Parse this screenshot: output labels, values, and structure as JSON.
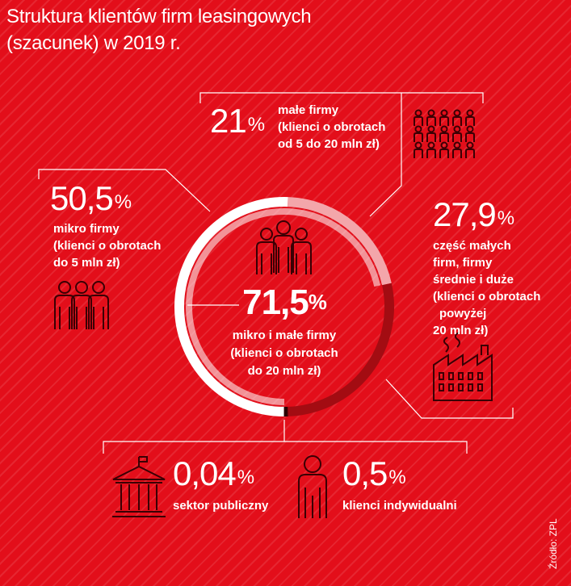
{
  "title_line1": "Struktura klientów firm leasingowych",
  "title_line2": "(szacunek) w 2019 r.",
  "percent_sign": "%",
  "items": {
    "male": {
      "value": "21",
      "l1": "małe firmy",
      "l2": "(klienci o obrotach",
      "l3": "od 5 do 20 mln zł)"
    },
    "mikro": {
      "value": "50,5",
      "l1": "mikro firmy",
      "l2": "(klienci o obrotach",
      "l3": "do 5 mln zł)"
    },
    "duze": {
      "value": "27,9",
      "l1": "część małych",
      "l2": "firm, firmy",
      "l3": "średnie i duże",
      "l4": "(klienci o obrotach",
      "l5": "powyżej",
      "l6": "20 mln zł)"
    },
    "center": {
      "value": "71,5",
      "l1": "mikro i małe firmy",
      "l2": "(klienci o obrotach",
      "l3": "do 20 mln zł)"
    },
    "publiczny": {
      "value": "0,04",
      "l1": "sektor publiczny"
    },
    "indywidualni": {
      "value": "0,5",
      "l1": "klienci indywidualni"
    }
  },
  "source": "Źródło: ZPL",
  "chart_data": {
    "type": "pie",
    "title": "Struktura klientów firm leasingowych (szacunek) w 2019 r.",
    "categories": [
      "mikro firmy (klienci o obrotach do 5 mln zł)",
      "małe firmy (klienci o obrotach od 5 do 20 mln zł)",
      "część małych firm, firmy średnie i duże (klienci o obrotach powyżej 20 mln zł)",
      "sektor publiczny",
      "klienci indywidualni"
    ],
    "values": [
      50.5,
      21,
      27.9,
      0.04,
      0.5
    ],
    "group": {
      "label": "mikro i małe firmy (klienci o obrotach do 20 mln zł)",
      "value": 71.5
    },
    "colors": [
      "#ffffff",
      "#f3a6aa",
      "#a30c12",
      "#2a0000",
      "#2a0000"
    ]
  }
}
